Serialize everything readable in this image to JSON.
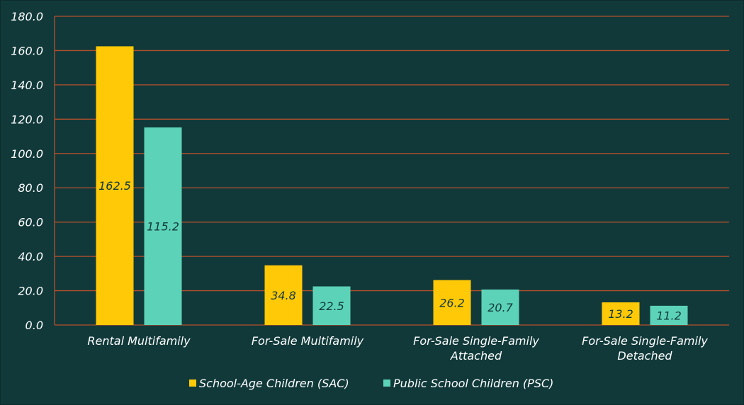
{
  "chart_data": {
    "type": "bar",
    "title": "",
    "xlabel": "",
    "ylabel": "",
    "ylim": [
      0,
      180
    ],
    "y_ticks": [
      "0.0",
      "20.0",
      "40.0",
      "60.0",
      "80.0",
      "100.0",
      "120.0",
      "140.0",
      "160.0",
      "180.0"
    ],
    "y_tick_values": [
      0,
      20,
      40,
      60,
      80,
      100,
      120,
      140,
      160,
      180
    ],
    "grid": true,
    "legend_position": "bottom-center",
    "categories": [
      [
        "Rental Multifamily"
      ],
      [
        "For-Sale Multifamily"
      ],
      [
        "For-Sale Single-Family",
        "Attached"
      ],
      [
        "For-Sale Single-Family",
        "Detached"
      ]
    ],
    "series": [
      {
        "name": "School-Age Children (SAC)",
        "values": [
          162.5,
          34.8,
          26.2,
          13.2
        ],
        "labels": [
          "162.5",
          "34.8",
          "26.2",
          "13.2"
        ]
      },
      {
        "name": "Public School Children (PSC)",
        "values": [
          115.2,
          22.5,
          20.7,
          11.2
        ],
        "labels": [
          "115.2",
          "22.5",
          "20.7",
          "11.2"
        ]
      }
    ]
  },
  "colors": {
    "background": "#11393a",
    "grid": "#b5502a",
    "axis": "#b5502a",
    "sac": "#ffc907",
    "psc": "#5cd3b8",
    "label_text": "#11393a",
    "tick_text": "#ffffff"
  }
}
